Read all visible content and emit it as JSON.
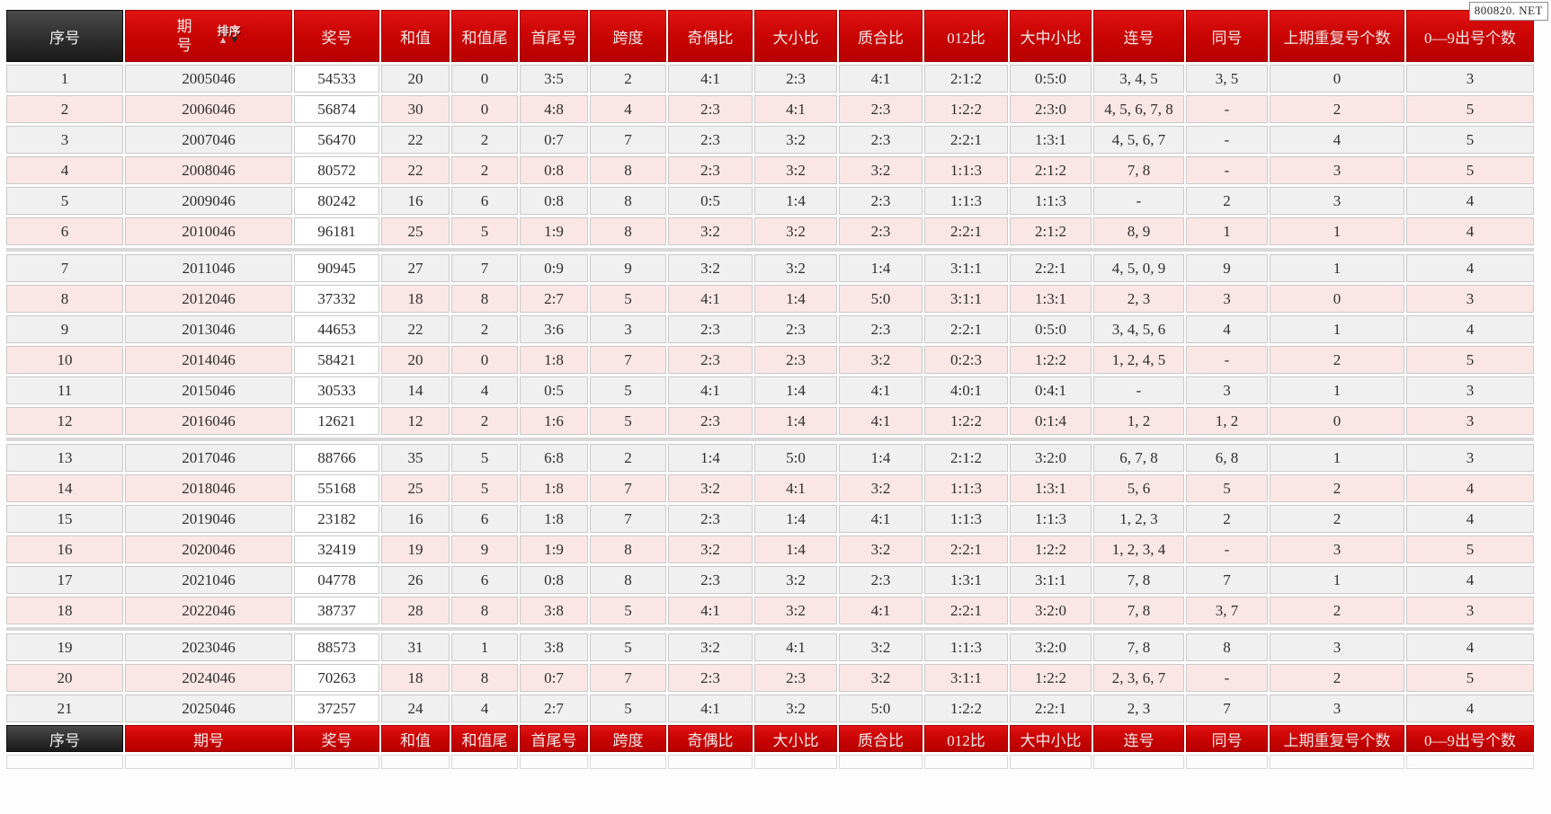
{
  "page": {
    "badge": "800820. NET"
  },
  "colors": {
    "header_red": "#cb0404",
    "header_dark": "#2e2e2e",
    "row_odd": "#eff0ef",
    "row_even": "#fbe6e6",
    "prize_cell": "#ffffff",
    "separator": "#d8d8d8"
  },
  "table": {
    "columns": [
      "序号",
      "期号",
      "奖号",
      "和值",
      "和值尾",
      "首尾号",
      "跨度",
      "奇偶比",
      "大小比",
      "质合比",
      "012比",
      "大中小比",
      "连号",
      "同号",
      "上期重复号个数",
      "0—9出号个数"
    ],
    "period_header": {
      "lines": [
        "期",
        "号"
      ],
      "sort_label": "排序",
      "sort_up": "▲",
      "sort_down": "▼"
    },
    "group_breaks_after": [
      6,
      12,
      18
    ],
    "rows": [
      [
        "1",
        "2005046",
        "54533",
        "20",
        "0",
        "3:5",
        "2",
        "4:1",
        "2:3",
        "4:1",
        "2:1:2",
        "0:5:0",
        "3, 4, 5",
        "3, 5",
        "0",
        "3"
      ],
      [
        "2",
        "2006046",
        "56874",
        "30",
        "0",
        "4:8",
        "4",
        "2:3",
        "4:1",
        "2:3",
        "1:2:2",
        "2:3:0",
        "4, 5, 6, 7, 8",
        "-",
        "2",
        "5"
      ],
      [
        "3",
        "2007046",
        "56470",
        "22",
        "2",
        "0:7",
        "7",
        "2:3",
        "3:2",
        "2:3",
        "2:2:1",
        "1:3:1",
        "4, 5, 6, 7",
        "-",
        "4",
        "5"
      ],
      [
        "4",
        "2008046",
        "80572",
        "22",
        "2",
        "0:8",
        "8",
        "2:3",
        "3:2",
        "3:2",
        "1:1:3",
        "2:1:2",
        "7, 8",
        "-",
        "3",
        "5"
      ],
      [
        "5",
        "2009046",
        "80242",
        "16",
        "6",
        "0:8",
        "8",
        "0:5",
        "1:4",
        "2:3",
        "1:1:3",
        "1:1:3",
        "-",
        "2",
        "3",
        "4"
      ],
      [
        "6",
        "2010046",
        "96181",
        "25",
        "5",
        "1:9",
        "8",
        "3:2",
        "3:2",
        "2:3",
        "2:2:1",
        "2:1:2",
        "8, 9",
        "1",
        "1",
        "4"
      ],
      [
        "7",
        "2011046",
        "90945",
        "27",
        "7",
        "0:9",
        "9",
        "3:2",
        "3:2",
        "1:4",
        "3:1:1",
        "2:2:1",
        "4, 5, 0, 9",
        "9",
        "1",
        "4"
      ],
      [
        "8",
        "2012046",
        "37332",
        "18",
        "8",
        "2:7",
        "5",
        "4:1",
        "1:4",
        "5:0",
        "3:1:1",
        "1:3:1",
        "2, 3",
        "3",
        "0",
        "3"
      ],
      [
        "9",
        "2013046",
        "44653",
        "22",
        "2",
        "3:6",
        "3",
        "2:3",
        "2:3",
        "2:3",
        "2:2:1",
        "0:5:0",
        "3, 4, 5, 6",
        "4",
        "1",
        "4"
      ],
      [
        "10",
        "2014046",
        "58421",
        "20",
        "0",
        "1:8",
        "7",
        "2:3",
        "2:3",
        "3:2",
        "0:2:3",
        "1:2:2",
        "1, 2, 4, 5",
        "-",
        "2",
        "5"
      ],
      [
        "11",
        "2015046",
        "30533",
        "14",
        "4",
        "0:5",
        "5",
        "4:1",
        "1:4",
        "4:1",
        "4:0:1",
        "0:4:1",
        "-",
        "3",
        "1",
        "3"
      ],
      [
        "12",
        "2016046",
        "12621",
        "12",
        "2",
        "1:6",
        "5",
        "2:3",
        "1:4",
        "4:1",
        "1:2:2",
        "0:1:4",
        "1, 2",
        "1, 2",
        "0",
        "3"
      ],
      [
        "13",
        "2017046",
        "88766",
        "35",
        "5",
        "6:8",
        "2",
        "1:4",
        "5:0",
        "1:4",
        "2:1:2",
        "3:2:0",
        "6, 7, 8",
        "6, 8",
        "1",
        "3"
      ],
      [
        "14",
        "2018046",
        "55168",
        "25",
        "5",
        "1:8",
        "7",
        "3:2",
        "4:1",
        "3:2",
        "1:1:3",
        "1:3:1",
        "5, 6",
        "5",
        "2",
        "4"
      ],
      [
        "15",
        "2019046",
        "23182",
        "16",
        "6",
        "1:8",
        "7",
        "2:3",
        "1:4",
        "4:1",
        "1:1:3",
        "1:1:3",
        "1, 2, 3",
        "2",
        "2",
        "4"
      ],
      [
        "16",
        "2020046",
        "32419",
        "19",
        "9",
        "1:9",
        "8",
        "3:2",
        "1:4",
        "3:2",
        "2:2:1",
        "1:2:2",
        "1, 2, 3, 4",
        "-",
        "3",
        "5"
      ],
      [
        "17",
        "2021046",
        "04778",
        "26",
        "6",
        "0:8",
        "8",
        "2:3",
        "3:2",
        "2:3",
        "1:3:1",
        "3:1:1",
        "7, 8",
        "7",
        "1",
        "4"
      ],
      [
        "18",
        "2022046",
        "38737",
        "28",
        "8",
        "3:8",
        "5",
        "4:1",
        "3:2",
        "4:1",
        "2:2:1",
        "3:2:0",
        "7, 8",
        "3, 7",
        "2",
        "3"
      ],
      [
        "19",
        "2023046",
        "88573",
        "31",
        "1",
        "3:8",
        "5",
        "3:2",
        "4:1",
        "3:2",
        "1:1:3",
        "3:2:0",
        "7, 8",
        "8",
        "3",
        "4"
      ],
      [
        "20",
        "2024046",
        "70263",
        "18",
        "8",
        "0:7",
        "7",
        "2:3",
        "2:3",
        "3:2",
        "3:1:1",
        "1:2:2",
        "2, 3, 6, 7",
        "-",
        "2",
        "5"
      ],
      [
        "21",
        "2025046",
        "37257",
        "24",
        "4",
        "2:7",
        "5",
        "4:1",
        "3:2",
        "5:0",
        "1:2:2",
        "2:2:1",
        "2, 3",
        "7",
        "3",
        "4"
      ]
    ]
  }
}
